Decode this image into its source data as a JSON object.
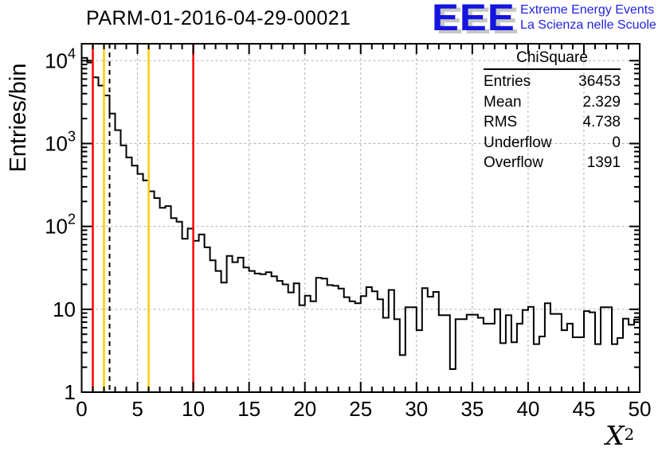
{
  "header": {
    "title": "PARM-01-2016-04-29-00021",
    "logo": {
      "acronym": "EEE",
      "line1": "Extreme Energy Events",
      "line2": "La Scienza nelle Scuole",
      "blue": "#1414e0",
      "shadow_gray": "#c6c6c6"
    }
  },
  "chart_data": {
    "type": "bar",
    "subtype": "step-histogram-log-y",
    "title": "PARM-01-2016-04-29-00021",
    "xlabel_base": "X",
    "xlabel_sup": "2",
    "ylabel": "Entries/bin",
    "xlim": [
      0,
      50
    ],
    "ylim": [
      1,
      16000
    ],
    "yscale": "log",
    "grid": "dashed gray at x multiples of 5 and y powers of 10",
    "legend_position": "none",
    "xticks": [
      "0",
      "5",
      "10",
      "15",
      "20",
      "25",
      "30",
      "35",
      "40",
      "45",
      "50"
    ],
    "xtick_values": [
      0,
      5,
      10,
      15,
      20,
      25,
      30,
      35,
      40,
      45,
      50
    ],
    "xminor_step": 1,
    "yticks": [
      {
        "v": 1,
        "base": "1",
        "sup": ""
      },
      {
        "v": 10,
        "base": "10",
        "sup": ""
      },
      {
        "v": 100,
        "base": "10",
        "sup": "2"
      },
      {
        "v": 1000,
        "base": "10",
        "sup": "3"
      },
      {
        "v": 10000,
        "base": "10",
        "sup": "4"
      }
    ],
    "x_gridlines": [
      5,
      10,
      15,
      20,
      25,
      30,
      35,
      40,
      45
    ],
    "y_gridlines": [
      10,
      100,
      1000,
      10000
    ],
    "bin_start": 0,
    "bin_width": 0.5,
    "values": [
      10800,
      9500,
      6300,
      5000,
      3800,
      2300,
      1450,
      950,
      680,
      540,
      430,
      360,
      265,
      220,
      168,
      176,
      126,
      114,
      71,
      94,
      67,
      80,
      56,
      39,
      29,
      21,
      44,
      37,
      42,
      32,
      29,
      27,
      26.5,
      28,
      25,
      22,
      20,
      16,
      20.5,
      11.2,
      14.6,
      12.5,
      24,
      23.5,
      19.6,
      19.2,
      17.8,
      14,
      12.5,
      11.8,
      14.4,
      18.5,
      16.5,
      13.2,
      7.9,
      17.1,
      7.6,
      2.8,
      10.6,
      10.6,
      5.6,
      18,
      14.2,
      16.2,
      8.5,
      8.5,
      1.9,
      7.6,
      7.6,
      8.6,
      8.6,
      7.9,
      6.7,
      6.7,
      10,
      3.9,
      8.5,
      4.0,
      6.7,
      9.8,
      10.7,
      3.8,
      4.7,
      11.8,
      8.8,
      8.8,
      5.6,
      6.7,
      4.6,
      4.6,
      9.5,
      9.2,
      3.8,
      10.6,
      10.6,
      3.8,
      4.5,
      7.7,
      6.5,
      7.5
    ],
    "line_color": "#000000",
    "grid_color": "#b0b0b0",
    "marker_lines": [
      {
        "x": 1,
        "color": "#ff0000",
        "style": "solid"
      },
      {
        "x": 2,
        "color": "#ffcc00",
        "style": "solid"
      },
      {
        "x": 2.5,
        "color": "#000000",
        "style": "dashed"
      },
      {
        "x": 6,
        "color": "#ffcc00",
        "style": "solid"
      },
      {
        "x": 10,
        "color": "#ff0000",
        "style": "solid"
      }
    ],
    "stats": {
      "title": "ChiSquare",
      "rows": [
        {
          "label": "Entries",
          "value": "36453"
        },
        {
          "label": "Mean",
          "value": "2.329"
        },
        {
          "label": "RMS",
          "value": "4.738"
        },
        {
          "label": "Underflow",
          "value": "0"
        },
        {
          "label": "Overflow",
          "value": "1391"
        }
      ]
    }
  }
}
